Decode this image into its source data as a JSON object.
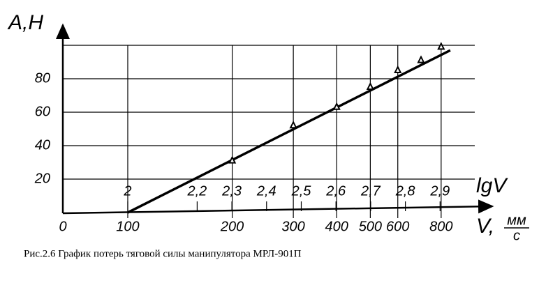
{
  "chart_data": {
    "type": "line",
    "y_label": "A,H",
    "x_label": "V,",
    "x_unit": [
      "мм",
      "с"
    ],
    "x2_label": "lgV",
    "x_origin_label": "0",
    "caption": "Рис.2.6 График потерь тяговой силы манипулятора МРЛ-901П",
    "x_scale": "log",
    "xlim": [
      65,
      1000
    ],
    "xticks": [
      100,
      200,
      300,
      400,
      500,
      600,
      800
    ],
    "x2ticks": [
      {
        "value": 2,
        "label": "2"
      },
      {
        "value": 2.2,
        "label": "2,2"
      },
      {
        "value": 2.3,
        "label": "2,3"
      },
      {
        "value": 2.4,
        "label": "2,4"
      },
      {
        "value": 2.5,
        "label": "2,5"
      },
      {
        "value": 2.6,
        "label": "2,6"
      },
      {
        "value": 2.7,
        "label": "2,7"
      },
      {
        "value": 2.8,
        "label": "2,8"
      },
      {
        "value": 2.9,
        "label": "2,9"
      }
    ],
    "ylim": [
      0,
      100
    ],
    "yticks": [
      20,
      40,
      60,
      80
    ],
    "grid": true,
    "color": "#000000",
    "series": [
      {
        "x": [
          100,
          850
        ],
        "values": [
          0,
          97
        ],
        "marker": false
      },
      {
        "x": [
          200,
          300,
          400,
          500,
          600,
          700,
          800
        ],
        "values": [
          31,
          52,
          63,
          75,
          85,
          91,
          99
        ],
        "marker": true
      }
    ]
  }
}
